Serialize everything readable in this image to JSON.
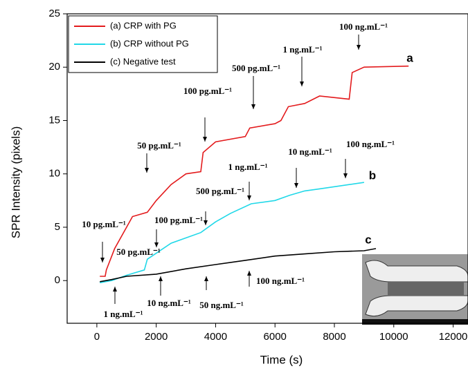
{
  "chart_data": {
    "type": "line",
    "x_label": "Time (s)",
    "y_label": "SPR Intensity (pixels)",
    "xlim": [
      -1000,
      12500
    ],
    "ylim": [
      -4,
      25
    ],
    "xticks": [
      0,
      2000,
      4000,
      6000,
      8000,
      10000,
      12000
    ],
    "yticks": [
      0,
      5,
      10,
      15,
      20,
      25
    ],
    "legend": "upper left",
    "series": [
      {
        "name": "(a)  CRP  with PG",
        "color": "#e31a1c",
        "x": [
          100,
          280,
          320,
          600,
          1000,
          1200,
          1700,
          2000,
          2500,
          3000,
          3500,
          3580,
          4000,
          5000,
          5150,
          6000,
          6200,
          6450,
          7000,
          7500,
          8500,
          8600,
          9000,
          10500
        ],
        "values": [
          0.4,
          0.4,
          1.0,
          3.0,
          5.0,
          6.0,
          6.4,
          7.5,
          9.0,
          10.0,
          10.2,
          12.0,
          13.0,
          13.5,
          14.3,
          14.7,
          15.0,
          16.3,
          16.6,
          17.3,
          17.0,
          19.5,
          20.0,
          20.1
        ]
      },
      {
        "name": "(b)  CRP without PG",
        "color": "#20d8e8",
        "x": [
          100,
          500,
          1000,
          1600,
          1700,
          2500,
          3500,
          4000,
          4500,
          5200,
          6000,
          6500,
          7000,
          7500,
          8500,
          9000
        ],
        "values": [
          -0.2,
          0.0,
          0.5,
          1.0,
          2.0,
          3.5,
          4.5,
          5.5,
          6.3,
          7.2,
          7.5,
          8.0,
          8.4,
          8.6,
          9.0,
          9.2
        ]
      },
      {
        "name": "(c)  Negative test",
        "color": "#000000",
        "x": [
          100,
          500,
          1000,
          2000,
          3000,
          4000,
          5000,
          6000,
          7000,
          8000,
          9000,
          9400
        ],
        "values": [
          -0.1,
          0.1,
          0.4,
          0.6,
          1.1,
          1.5,
          1.9,
          2.3,
          2.5,
          2.7,
          2.8,
          3.0
        ]
      }
    ],
    "annotations": [
      "100 ng.mL⁻¹",
      "1 ng.mL⁻¹",
      "500 pg.mL⁻¹",
      "100 pg.mL⁻¹",
      "50 pg.mL⁻¹",
      "10 pg.mL⁻¹",
      "100 pg.mL⁻¹",
      "50 pg.mL⁻¹",
      "500 pg.mL⁻¹",
      "1 ng.mL⁻¹",
      "10 ng.mL⁻¹",
      "100 ng.mL⁻¹",
      "1 ng.mL⁻¹",
      "10 ng.mL⁻¹",
      "50 ng.mL⁻¹",
      "100 ng.mL⁻¹",
      "a",
      "b",
      "c"
    ]
  }
}
